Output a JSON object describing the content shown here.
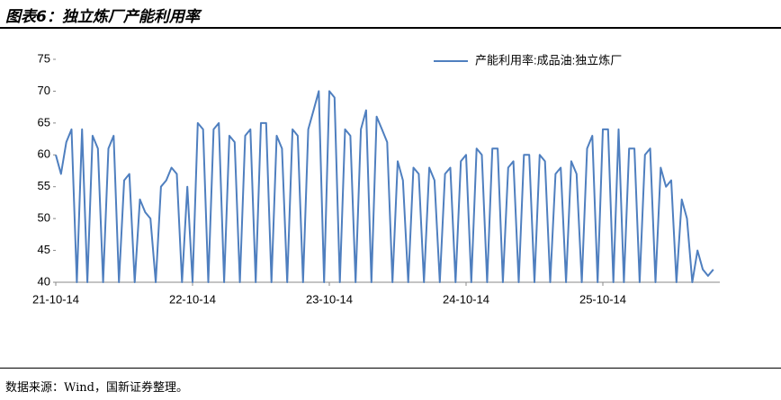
{
  "header": {
    "title": "图表6：独立炼厂产能利用率"
  },
  "chart_data": {
    "type": "line",
    "categories": [
      "21-10-14",
      null,
      null,
      null,
      null,
      null,
      null,
      null,
      null,
      null,
      null,
      null,
      null,
      null,
      null,
      null,
      null,
      null,
      null,
      null,
      null,
      null,
      null,
      null,
      null,
      null,
      "22-10-14",
      null,
      null,
      null,
      null,
      null,
      null,
      null,
      null,
      null,
      null,
      null,
      null,
      null,
      null,
      null,
      null,
      null,
      null,
      null,
      null,
      null,
      null,
      null,
      null,
      null,
      "23-10-14",
      null,
      null,
      null,
      null,
      null,
      null,
      null,
      null,
      null,
      null,
      null,
      null,
      null,
      null,
      null,
      null,
      null,
      null,
      null,
      null,
      null,
      null,
      null,
      null,
      null,
      "24-10-14",
      null,
      null,
      null,
      null,
      null,
      null,
      null,
      null,
      null,
      null,
      null,
      null,
      null,
      null,
      null,
      null,
      null,
      null,
      null,
      null,
      null,
      null,
      null,
      null,
      null,
      "25-10-14",
      null,
      null,
      null,
      null,
      null,
      null,
      null,
      null,
      null,
      null,
      null,
      null,
      null,
      null,
      null,
      null,
      null,
      null,
      null,
      null,
      null
    ],
    "series": [
      {
        "name": "产能利用率:成品油:独立炼厂",
        "color": "#4f7fbf",
        "values": [
          60,
          57,
          62,
          64,
          40,
          64,
          40,
          63,
          61,
          40,
          61,
          63,
          40,
          56,
          57,
          40,
          53,
          51,
          50,
          40,
          55,
          56,
          58,
          57,
          40,
          55,
          40,
          65,
          64,
          40,
          64,
          65,
          40,
          63,
          62,
          40,
          63,
          64,
          40,
          65,
          65,
          40,
          63,
          61,
          40,
          64,
          63,
          40,
          64,
          67,
          70,
          40,
          70,
          69,
          40,
          64,
          63,
          40,
          64,
          67,
          40,
          66,
          64,
          62,
          40,
          59,
          56,
          40,
          58,
          57,
          40,
          58,
          56,
          40,
          57,
          58,
          40,
          59,
          60,
          40,
          61,
          60,
          40,
          61,
          61,
          40,
          58,
          59,
          40,
          60,
          60,
          40,
          60,
          59,
          40,
          57,
          58,
          40,
          59,
          57,
          40,
          61,
          63,
          40,
          64,
          64,
          40,
          64,
          40,
          61,
          61,
          40,
          60,
          61,
          40,
          58,
          55,
          56,
          40,
          53,
          50,
          40,
          45,
          42,
          41,
          42
        ]
      }
    ],
    "ylim": [
      40,
      75
    ],
    "yticks": [
      40,
      45,
      50,
      55,
      60,
      65,
      70,
      75
    ]
  },
  "footer": {
    "source": "数据来源：Wind，国新证券整理。"
  }
}
